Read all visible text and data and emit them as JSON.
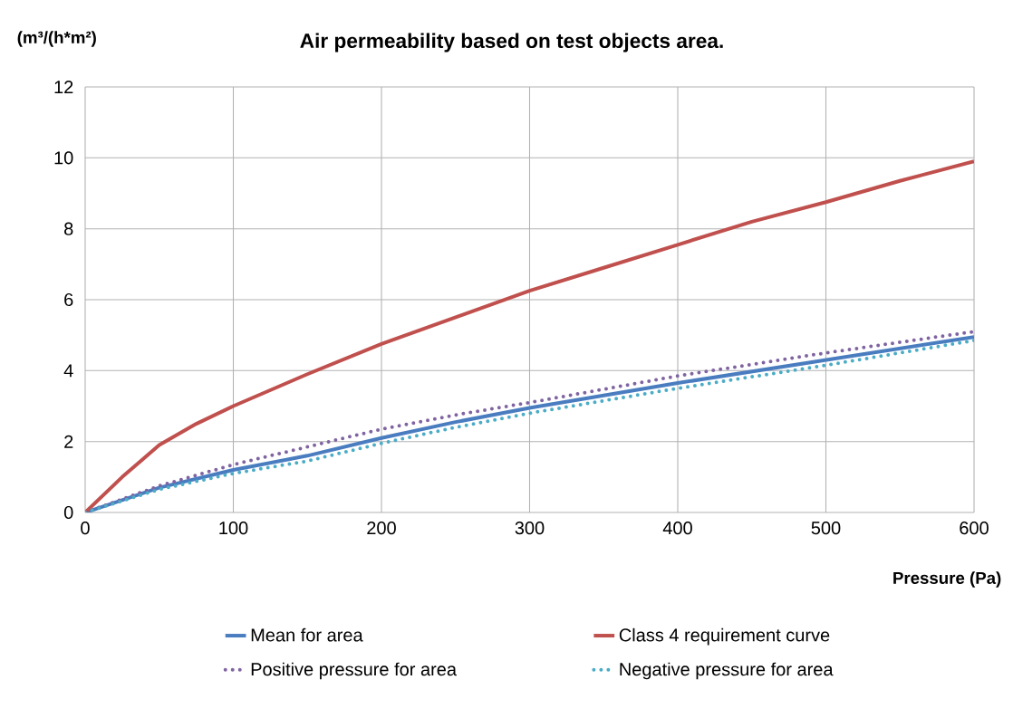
{
  "chart_data": {
    "type": "line",
    "title": "Air permeability based on test objects area.",
    "xlabel": "Pressure (Pa)",
    "ylabel": "(m³/(h*m²)",
    "xlim": [
      0,
      600
    ],
    "ylim": [
      0,
      12
    ],
    "xticks": [
      0,
      100,
      200,
      300,
      400,
      500,
      600
    ],
    "yticks": [
      0,
      2,
      4,
      6,
      8,
      10,
      12
    ],
    "grid": true,
    "legend": "bottom",
    "marker": "none",
    "series": [
      {
        "name": "Mean for area",
        "color": "#4a7dc0",
        "line_style": "solid",
        "x": [
          0,
          50,
          100,
          150,
          200,
          250,
          300,
          400,
          500,
          600
        ],
        "values": [
          0,
          0.7,
          1.2,
          1.6,
          2.1,
          2.55,
          2.95,
          3.65,
          4.3,
          4.95
        ]
      },
      {
        "name": "Class 4 requirement curve",
        "color": "#c0504d",
        "line_style": "solid",
        "x": [
          0,
          25,
          50,
          75,
          100,
          150,
          200,
          250,
          300,
          350,
          400,
          450,
          500,
          550,
          600
        ],
        "values": [
          0,
          1.0,
          1.9,
          2.5,
          3.0,
          3.9,
          4.75,
          5.5,
          6.25,
          6.9,
          7.55,
          8.2,
          8.75,
          9.35,
          9.9
        ]
      },
      {
        "name": "Positive pressure for area",
        "color": "#8064a2",
        "line_style": "dotted",
        "x": [
          0,
          50,
          100,
          150,
          200,
          250,
          300,
          400,
          500,
          600
        ],
        "values": [
          0,
          0.75,
          1.35,
          1.85,
          2.35,
          2.75,
          3.1,
          3.85,
          4.5,
          5.1
        ]
      },
      {
        "name": "Negative pressure for area",
        "color": "#4bacc6",
        "line_style": "dotted",
        "x": [
          0,
          50,
          100,
          150,
          200,
          250,
          300,
          400,
          500,
          600
        ],
        "values": [
          0,
          0.65,
          1.1,
          1.45,
          1.95,
          2.4,
          2.8,
          3.5,
          4.15,
          4.85
        ]
      }
    ]
  }
}
